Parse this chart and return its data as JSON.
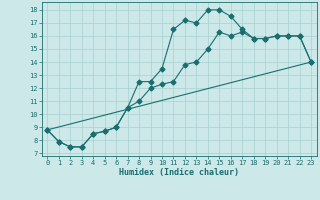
{
  "xlabel": "Humidex (Indice chaleur)",
  "xlim": [
    -0.5,
    23.5
  ],
  "ylim": [
    6.8,
    18.6
  ],
  "yticks": [
    7,
    8,
    9,
    10,
    11,
    12,
    13,
    14,
    15,
    16,
    17,
    18
  ],
  "xticks": [
    0,
    1,
    2,
    3,
    4,
    5,
    6,
    7,
    8,
    9,
    10,
    11,
    12,
    13,
    14,
    15,
    16,
    17,
    18,
    19,
    20,
    21,
    22,
    23
  ],
  "bg_color": "#cce8e8",
  "line_color": "#1a6e6e",
  "grid_color": "#a8d0d0",
  "line1_x": [
    0,
    1,
    2,
    3,
    4,
    5,
    6,
    7,
    8,
    9,
    10,
    11,
    12,
    13,
    14,
    15,
    16,
    17,
    18,
    19,
    20,
    21,
    22,
    23
  ],
  "line1_y": [
    8.8,
    7.9,
    7.5,
    7.5,
    8.5,
    8.7,
    9.0,
    10.5,
    11.0,
    12.0,
    12.3,
    12.5,
    13.8,
    14.0,
    15.0,
    16.3,
    16.0,
    16.3,
    15.8,
    15.8,
    16.0,
    16.0,
    16.0,
    14.0
  ],
  "line2_x": [
    0,
    1,
    2,
    3,
    4,
    5,
    6,
    7,
    8,
    9,
    10,
    11,
    12,
    13,
    14,
    15,
    16,
    17,
    18,
    19,
    20,
    21,
    22,
    23
  ],
  "line2_y": [
    8.8,
    7.9,
    7.5,
    7.5,
    8.5,
    8.7,
    9.0,
    10.5,
    12.5,
    12.5,
    13.5,
    16.5,
    17.2,
    17.0,
    18.0,
    18.0,
    17.5,
    16.5,
    15.8,
    15.8,
    16.0,
    16.0,
    16.0,
    14.0
  ],
  "line3_x": [
    0,
    23
  ],
  "line3_y": [
    8.8,
    14.0
  ]
}
